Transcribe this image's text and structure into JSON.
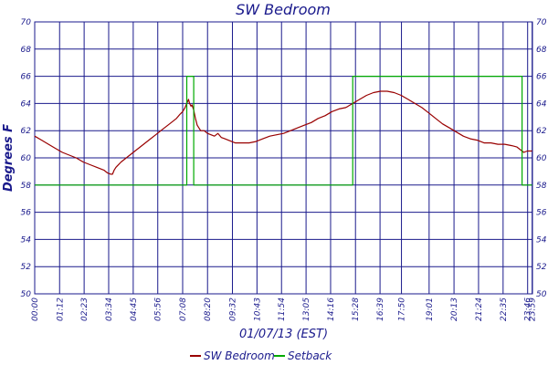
{
  "chart_data": {
    "type": "line",
    "title": "SW Bedroom",
    "xlabel": "01/07/13 (EST)",
    "ylabel": "Degrees F",
    "ylim": [
      50,
      70
    ],
    "xlim": [
      0,
      1440
    ],
    "y_ticks": [
      50,
      52,
      54,
      56,
      58,
      60,
      62,
      64,
      66,
      68,
      70
    ],
    "x_ticks": [
      {
        "t": 0,
        "label": "00:00"
      },
      {
        "t": 72,
        "label": "01:12"
      },
      {
        "t": 143,
        "label": "02:23"
      },
      {
        "t": 214,
        "label": "03:34"
      },
      {
        "t": 285,
        "label": "04:45"
      },
      {
        "t": 356,
        "label": "05:56"
      },
      {
        "t": 428,
        "label": "07:08"
      },
      {
        "t": 500,
        "label": "08:20"
      },
      {
        "t": 572,
        "label": "09:32"
      },
      {
        "t": 643,
        "label": "10:43"
      },
      {
        "t": 714,
        "label": "11:54"
      },
      {
        "t": 785,
        "label": "13:05"
      },
      {
        "t": 856,
        "label": "14:16"
      },
      {
        "t": 928,
        "label": "15:28"
      },
      {
        "t": 999,
        "label": "16:39"
      },
      {
        "t": 1061,
        "label": "17:50"
      },
      {
        "t": 1141,
        "label": "19:01"
      },
      {
        "t": 1213,
        "label": "20:13"
      },
      {
        "t": 1284,
        "label": "21:24"
      },
      {
        "t": 1355,
        "label": "22:35"
      },
      {
        "t": 1426,
        "label": "23:46"
      },
      {
        "t": 1439,
        "label": "23:59"
      }
    ],
    "grid": true,
    "legend_position": "bottom-center",
    "series": [
      {
        "name": "SW Bedroom",
        "color": "#990000",
        "x": [
          0,
          20,
          40,
          60,
          80,
          100,
          120,
          140,
          160,
          180,
          200,
          210,
          220,
          225,
          230,
          235,
          250,
          270,
          290,
          310,
          330,
          350,
          370,
          390,
          410,
          420,
          428,
          435,
          440,
          445,
          448,
          452,
          455,
          460,
          465,
          470,
          475,
          480,
          490,
          500,
          510,
          520,
          530,
          540,
          550,
          560,
          570,
          580,
          600,
          620,
          640,
          660,
          680,
          700,
          720,
          740,
          760,
          780,
          800,
          820,
          840,
          860,
          880,
          900,
          920,
          940,
          960,
          980,
          1000,
          1020,
          1040,
          1060,
          1080,
          1100,
          1120,
          1140,
          1160,
          1180,
          1200,
          1220,
          1240,
          1260,
          1280,
          1300,
          1320,
          1340,
          1360,
          1380,
          1395,
          1405,
          1415,
          1425,
          1439
        ],
        "y": [
          61.6,
          61.3,
          61.0,
          60.7,
          60.4,
          60.2,
          60.0,
          59.7,
          59.5,
          59.3,
          59.1,
          58.9,
          58.8,
          58.8,
          59.1,
          59.3,
          59.7,
          60.1,
          60.5,
          60.9,
          61.3,
          61.7,
          62.1,
          62.5,
          62.9,
          63.2,
          63.4,
          63.7,
          64.0,
          64.3,
          64.0,
          63.8,
          63.9,
          63.5,
          62.9,
          62.4,
          62.2,
          62.0,
          62.0,
          61.8,
          61.7,
          61.6,
          61.8,
          61.5,
          61.4,
          61.3,
          61.2,
          61.1,
          61.1,
          61.1,
          61.2,
          61.4,
          61.6,
          61.7,
          61.8,
          62.0,
          62.2,
          62.4,
          62.6,
          62.9,
          63.1,
          63.4,
          63.6,
          63.7,
          64.0,
          64.3,
          64.6,
          64.8,
          64.9,
          64.9,
          64.8,
          64.6,
          64.3,
          64.0,
          63.7,
          63.3,
          62.9,
          62.5,
          62.2,
          61.9,
          61.6,
          61.4,
          61.3,
          61.1,
          61.1,
          61.0,
          61.0,
          60.9,
          60.8,
          60.6,
          60.4,
          60.5,
          60.5
        ]
      },
      {
        "name": "Setback",
        "color": "#00aa00",
        "step": true,
        "x": [
          0,
          440,
          440,
          460,
          460,
          920,
          920,
          1410,
          1410,
          1439
        ],
        "y": [
          58,
          58,
          66,
          66,
          58,
          58,
          66,
          66,
          58,
          58
        ]
      }
    ]
  }
}
